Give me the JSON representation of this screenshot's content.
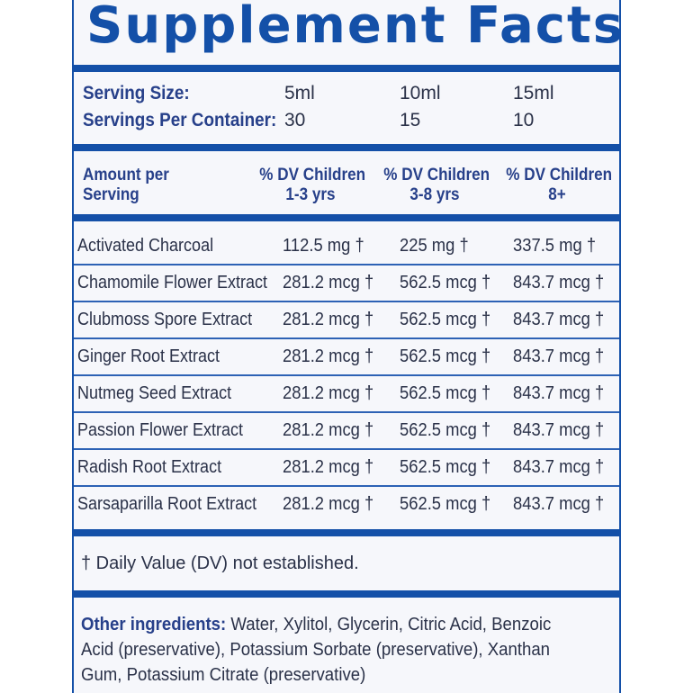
{
  "title": "Supplement Facts",
  "serving": {
    "size_label": "Serving Size:",
    "size_values": [
      "5ml",
      "10ml",
      "15ml"
    ],
    "servings_label": "Servings Per Container:",
    "servings_values": [
      "30",
      "15",
      "10"
    ]
  },
  "header": {
    "amount_line1": "Amount per",
    "amount_line2": "Serving",
    "columns": [
      {
        "line1": "% DV  Children",
        "line2": "1-3 yrs"
      },
      {
        "line1": "% DV  Children",
        "line2": "3-8 yrs"
      },
      {
        "line1": "% DV Children",
        "line2": "8+"
      }
    ]
  },
  "ingredients": [
    {
      "name": "Activated Charcoal",
      "values": [
        "112.5 mg †",
        "225 mg †",
        "337.5  mg †"
      ]
    },
    {
      "name": "Chamomile Flower Extract",
      "values": [
        "281.2 mcg †",
        "562.5 mcg †",
        "843.7 mcg †"
      ]
    },
    {
      "name": "Clubmoss Spore Extract",
      "values": [
        "281.2 mcg †",
        "562.5 mcg †",
        "843.7 mcg †"
      ]
    },
    {
      "name": "Ginger Root Extract",
      "values": [
        "281.2 mcg †",
        "562.5 mcg †",
        "843.7 mcg †"
      ]
    },
    {
      "name": "Nutmeg Seed Extract",
      "values": [
        "281.2 mcg †",
        "562.5 mcg †",
        "843.7 mcg †"
      ]
    },
    {
      "name": "Passion Flower Extract",
      "values": [
        "281.2 mcg †",
        "562.5 mcg †",
        "843.7 mcg †"
      ]
    },
    {
      "name": "Radish Root Extract",
      "values": [
        "281.2 mcg †",
        "562.5 mcg †",
        "843.7 mcg †"
      ]
    },
    {
      "name": "Sarsaparilla Root Extract",
      "values": [
        "281.2 mcg †",
        "562.5 mcg †",
        "843.7 mcg †"
      ]
    }
  ],
  "footnote": "† Daily Value (DV) not established.",
  "other_ingredients": {
    "label": "Other ingredients:",
    "text": " Water, Xylitol, Glycerin, Citric Acid, Benzoic Acid (preservative), Potassium Sorbate (preservative), Xanthan Gum, Potassium Citrate (preservative)"
  },
  "colors": {
    "accent": "#1450a8",
    "panel": "#f6f7fb",
    "text": "#2a3148"
  }
}
